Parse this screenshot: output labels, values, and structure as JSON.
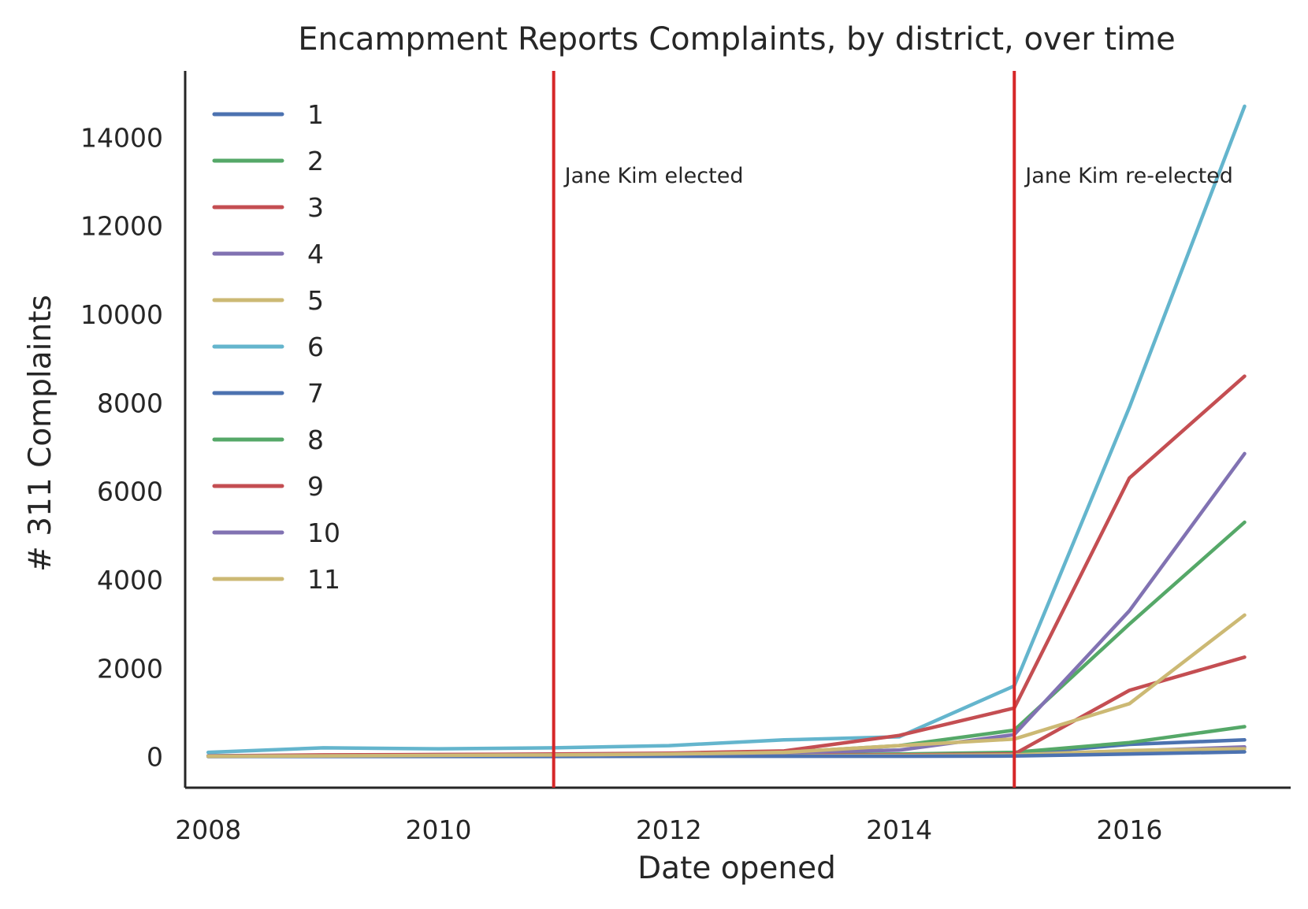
{
  "chart_data": {
    "type": "line",
    "title": "Encampment Reports Complaints, by district, over time",
    "xlabel": "Date opened",
    "ylabel": "# 311 Complaints",
    "xlim": [
      2007.8,
      2017.4
    ],
    "ylim": [
      -700,
      15500
    ],
    "xticks": [
      2008,
      2010,
      2012,
      2014,
      2016
    ],
    "yticks": [
      0,
      2000,
      4000,
      6000,
      8000,
      10000,
      12000,
      14000
    ],
    "grid": false,
    "legend": "upper left",
    "x": [
      2008,
      2009,
      2010,
      2011,
      2012,
      2013,
      2014,
      2015,
      2016,
      2017
    ],
    "series": [
      {
        "name": "1",
        "color": "#4c72b0",
        "values": [
          20,
          30,
          25,
          30,
          35,
          40,
          50,
          60,
          280,
          380
        ]
      },
      {
        "name": "2",
        "color": "#55a868",
        "values": [
          15,
          20,
          20,
          25,
          30,
          40,
          60,
          100,
          320,
          680
        ]
      },
      {
        "name": "3",
        "color": "#c44e52",
        "values": [
          10,
          15,
          15,
          20,
          25,
          30,
          40,
          60,
          1500,
          2250
        ]
      },
      {
        "name": "4",
        "color": "#8172b2",
        "values": [
          5,
          10,
          10,
          15,
          15,
          20,
          20,
          30,
          130,
          220
        ]
      },
      {
        "name": "5",
        "color": "#ccb974",
        "values": [
          5,
          10,
          10,
          10,
          15,
          20,
          30,
          40,
          140,
          180
        ]
      },
      {
        "name": "6",
        "color": "#64b5cd",
        "values": [
          100,
          200,
          180,
          200,
          250,
          380,
          450,
          1600,
          7900,
          14700
        ]
      },
      {
        "name": "7",
        "color": "#4c72b0",
        "values": [
          5,
          5,
          5,
          5,
          10,
          10,
          10,
          15,
          60,
          110
        ]
      },
      {
        "name": "8",
        "color": "#55a868",
        "values": [
          20,
          30,
          40,
          50,
          70,
          100,
          250,
          600,
          3000,
          5300
        ]
      },
      {
        "name": "9",
        "color": "#c44e52",
        "values": [
          20,
          40,
          50,
          60,
          80,
          130,
          480,
          1100,
          6300,
          8600
        ]
      },
      {
        "name": "10",
        "color": "#8172b2",
        "values": [
          15,
          20,
          30,
          40,
          60,
          90,
          150,
          500,
          3300,
          6850
        ]
      },
      {
        "name": "11",
        "color": "#ccb974",
        "values": [
          10,
          20,
          30,
          40,
          60,
          100,
          250,
          400,
          1200,
          3200
        ]
      }
    ],
    "vertical_lines": [
      {
        "x": 2011,
        "label": "Jane Kim elected",
        "color": "#d62728"
      },
      {
        "x": 2015,
        "label": "Jane Kim re-elected",
        "color": "#d62728"
      }
    ]
  }
}
